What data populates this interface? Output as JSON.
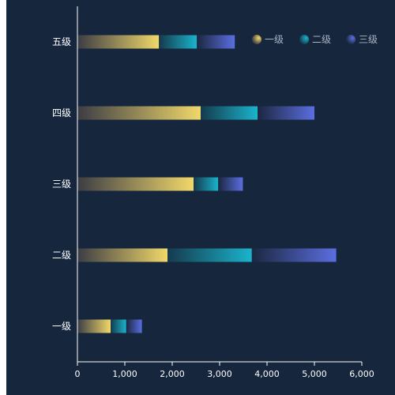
{
  "chart_data": {
    "type": "bar",
    "orientation": "horizontal",
    "stacked": true,
    "categories": [
      "一级",
      "二级",
      "三级",
      "四级",
      "五级"
    ],
    "series": [
      {
        "name": "一级",
        "values": [
          700,
          1900,
          2450,
          2600,
          1720
        ],
        "color_start": "#3b3c44",
        "color_end": "#f1d86a"
      },
      {
        "name": "二级",
        "values": [
          330,
          1780,
          520,
          1200,
          800
        ],
        "color_start": "#153a4c",
        "color_end": "#1ab4cc"
      },
      {
        "name": "三级",
        "values": [
          330,
          1780,
          520,
          1200,
          800
        ],
        "color_start": "#1b2740",
        "color_end": "#5b6ee0"
      }
    ],
    "xlim": [
      0,
      6000
    ],
    "x_ticks": [
      "0",
      "1,000",
      "2,000",
      "3,000",
      "4,000",
      "5,000",
      "6,000"
    ],
    "grid": false,
    "legend_position": "top-right",
    "colors": {
      "background": "#16263d",
      "axis": "#ffffff"
    }
  }
}
